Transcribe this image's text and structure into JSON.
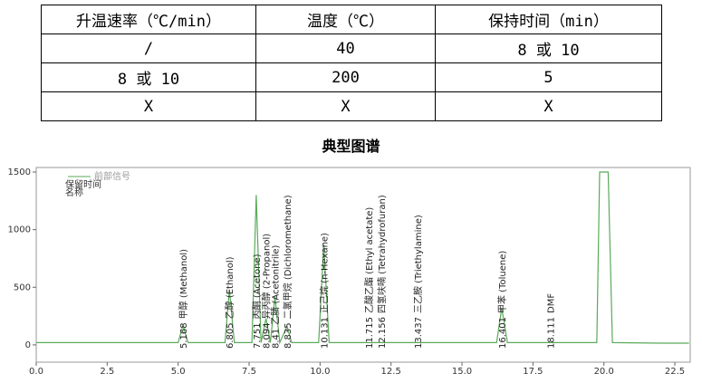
{
  "table": {
    "header": [
      "升温速率（℃/min）",
      "温度（℃）",
      "保持时间（min）"
    ],
    "rows": [
      [
        "/",
        "40",
        "8 或 10"
      ],
      [
        "8 或 10",
        "200",
        "5"
      ],
      [
        "X",
        "X",
        "X"
      ]
    ]
  },
  "heading": "典型图谱",
  "chart_data": {
    "type": "line",
    "legend_items": [
      "保留时间",
      "名称"
    ],
    "series": [
      {
        "name": "前部信号",
        "color": "#5aaa5a",
        "x": [
          0,
          5.0,
          5.168,
          5.35,
          6.65,
          6.805,
          6.98,
          7.6,
          7.751,
          7.92,
          8.094,
          8.25,
          8.41,
          8.58,
          8.835,
          9.0,
          9.95,
          10.131,
          10.32,
          16.22,
          16.401,
          16.6,
          19.75,
          19.85,
          20.15,
          20.3,
          22.0,
          23
        ],
        "values": [
          20,
          20,
          170,
          20,
          20,
          480,
          20,
          20,
          1300,
          20,
          230,
          20,
          420,
          20,
          160,
          20,
          20,
          870,
          20,
          20,
          320,
          20,
          20,
          1500,
          1500,
          20,
          15,
          15
        ]
      }
    ],
    "peaks": [
      {
        "time": 5.168,
        "name": "甲醇 (Methanol)"
      },
      {
        "time": 6.805,
        "name": "乙醇 (Ethanol)"
      },
      {
        "time": 7.751,
        "name": "丙酮 (Acetone)"
      },
      {
        "time": 8.094,
        "name": "异丙醇 (2-Propanol)"
      },
      {
        "time": 8.41,
        "name": "乙腈 (Acetonitrile)"
      },
      {
        "time": 8.835,
        "name": "二氯甲烷 (Dichloromethane)"
      },
      {
        "time": 10.131,
        "name": "正己烷 (n-Hexane)"
      },
      {
        "time": 11.715,
        "name": "乙酸乙酯 (Ethyl acetate)"
      },
      {
        "time": 12.156,
        "name": "四氢呋喃 (Tetrahydrofuran)"
      },
      {
        "time": 13.437,
        "name": "三乙胺 (Triethylamine)"
      },
      {
        "time": 16.401,
        "name": "甲苯 (Toluene)"
      },
      {
        "time": 18.111,
        "name": "DMF"
      }
    ],
    "xlim": [
      0,
      23
    ],
    "ylim": [
      -150,
      1500
    ],
    "xticks": [
      {
        "value": 0,
        "label": "0.0"
      },
      2.5,
      {
        "value": 5,
        "label": "5.0"
      },
      7.5,
      {
        "value": 10,
        "label": "10.0"
      },
      12.5,
      {
        "value": 15,
        "label": "15.0"
      },
      17.5,
      {
        "value": 20,
        "label": "20.0"
      },
      22.5
    ],
    "yticks": [
      0,
      500,
      1000,
      1500
    ]
  }
}
